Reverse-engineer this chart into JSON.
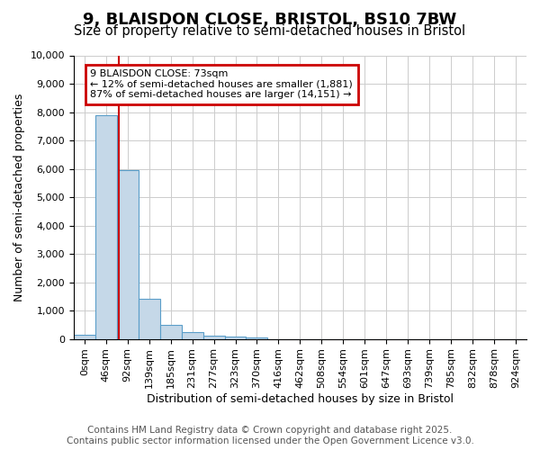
{
  "title": "9, BLAISDON CLOSE, BRISTOL, BS10 7BW",
  "subtitle": "Size of property relative to semi-detached houses in Bristol",
  "xlabel": "Distribution of semi-detached houses by size in Bristol",
  "ylabel": "Number of semi-detached properties",
  "bin_labels": [
    "0sqm",
    "46sqm",
    "92sqm",
    "139sqm",
    "185sqm",
    "231sqm",
    "277sqm",
    "323sqm",
    "370sqm",
    "416sqm",
    "462sqm",
    "508sqm",
    "554sqm",
    "601sqm",
    "647sqm",
    "693sqm",
    "739sqm",
    "785sqm",
    "832sqm",
    "878sqm",
    "924sqm"
  ],
  "bar_values": [
    150,
    7900,
    5950,
    1400,
    480,
    230,
    120,
    80,
    45,
    0,
    0,
    0,
    0,
    0,
    0,
    0,
    0,
    0,
    0,
    0,
    0
  ],
  "bar_color": "#c5d8e8",
  "bar_edge_color": "#5a9ec9",
  "property_line_x": 1.6,
  "annotation_title": "9 BLAISDON CLOSE: 73sqm",
  "annotation_line1": "← 12% of semi-detached houses are smaller (1,881)",
  "annotation_line2": "87% of semi-detached houses are larger (14,151) →",
  "annotation_box_facecolor": "#ffffff",
  "annotation_box_edgecolor": "#cc0000",
  "property_line_color": "#cc0000",
  "ylim": [
    0,
    10000
  ],
  "yticks": [
    0,
    1000,
    2000,
    3000,
    4000,
    5000,
    6000,
    7000,
    8000,
    9000,
    10000
  ],
  "grid_color": "#cccccc",
  "footer_line1": "Contains HM Land Registry data © Crown copyright and database right 2025.",
  "footer_line2": "Contains public sector information licensed under the Open Government Licence v3.0.",
  "title_fontsize": 13,
  "subtitle_fontsize": 10.5,
  "axis_label_fontsize": 9,
  "tick_fontsize": 8,
  "annotation_fontsize": 8,
  "footer_fontsize": 7.5
}
